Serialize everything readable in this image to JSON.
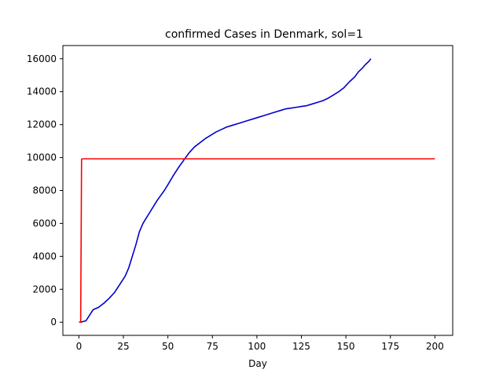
{
  "chart_data": {
    "type": "line",
    "title": "confirmed Cases in Denmark, sol=1",
    "xlabel": "Day",
    "ylabel": "",
    "xlim": [
      -9,
      210
    ],
    "ylim": [
      -800,
      16800
    ],
    "xticks": [
      0,
      25,
      50,
      75,
      100,
      125,
      150,
      175,
      200
    ],
    "yticks": [
      0,
      2000,
      4000,
      6000,
      8000,
      10000,
      12000,
      14000,
      16000
    ],
    "grid": false,
    "series": [
      {
        "color": "#0000cc",
        "x": [
          1,
          4,
          8,
          11,
          14,
          17,
          20,
          23,
          26,
          28,
          30,
          32,
          34,
          36,
          38,
          40,
          42,
          44,
          46,
          48,
          50,
          53,
          56,
          59,
          62,
          65,
          68,
          71,
          74,
          77,
          80,
          83,
          86,
          89,
          92,
          95,
          98,
          101,
          104,
          107,
          110,
          113,
          116,
          119,
          122,
          125,
          128,
          131,
          134,
          137,
          140,
          143,
          146,
          149,
          152,
          155,
          157,
          159,
          161,
          163,
          164
        ],
        "y": [
          0,
          90,
          760,
          900,
          1150,
          1450,
          1800,
          2300,
          2800,
          3300,
          4000,
          4700,
          5500,
          6000,
          6350,
          6700,
          7050,
          7400,
          7700,
          8000,
          8350,
          8900,
          9400,
          9850,
          10300,
          10650,
          10900,
          11150,
          11350,
          11550,
          11700,
          11850,
          11950,
          12050,
          12150,
          12250,
          12350,
          12450,
          12550,
          12650,
          12750,
          12850,
          12950,
          13000,
          13050,
          13100,
          13150,
          13250,
          13350,
          13450,
          13600,
          13800,
          14000,
          14250,
          14600,
          14900,
          15200,
          15400,
          15650,
          15850,
          16000
        ]
      },
      {
        "color": "#ff0000",
        "x": [
          0,
          1,
          1.5,
          2,
          200
        ],
        "y": [
          0,
          0,
          9900,
          9920,
          9920
        ]
      }
    ]
  }
}
